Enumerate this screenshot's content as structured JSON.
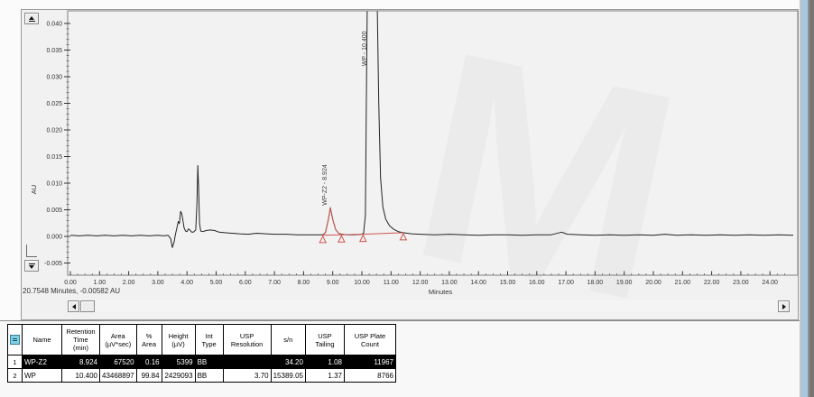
{
  "status_bar": {
    "text": "20.7548 Minutes, -0.00582 AU"
  },
  "chart_data": {
    "type": "line",
    "title": "",
    "xlabel": "Minutes",
    "ylabel": "AU",
    "xlim": [
      0,
      24.85
    ],
    "ylim": [
      -0.0073,
      0.0424
    ],
    "grid": false,
    "x_tick_labels": [
      "0.00",
      "1.00",
      "2.00",
      "3.00",
      "4.00",
      "5.00",
      "6.00",
      "7.00",
      "8.00",
      "9.00",
      "10.00",
      "11.00",
      "12.00",
      "13.00",
      "14.00",
      "15.00",
      "16.00",
      "17.00",
      "18.00",
      "19.00",
      "20.00",
      "21.00",
      "22.00",
      "23.00",
      "24.00"
    ],
    "y_tick_labels": [
      "-0.005",
      "0.000",
      "0.005",
      "0.010",
      "0.015",
      "0.020",
      "0.025",
      "0.030",
      "0.035",
      "0.040"
    ],
    "series": [
      {
        "name": "chromatogram-trace",
        "color": "#222222",
        "points": [
          [
            0.0,
            0.0002
          ],
          [
            0.3,
            0.0001
          ],
          [
            0.6,
            0.0002
          ],
          [
            0.9,
            0.0001
          ],
          [
            1.2,
            0.0002
          ],
          [
            1.5,
            0.0001
          ],
          [
            1.8,
            0.0002
          ],
          [
            2.1,
            0.0001
          ],
          [
            2.4,
            0.0002
          ],
          [
            2.7,
            0.0001
          ],
          [
            3.0,
            0.0002
          ],
          [
            3.2,
            0.0001
          ],
          [
            3.35,
            0.0002
          ],
          [
            3.44,
            -0.0004
          ],
          [
            3.5,
            -0.0021
          ],
          [
            3.56,
            -0.001
          ],
          [
            3.6,
            0.0003
          ],
          [
            3.65,
            0.0015
          ],
          [
            3.7,
            0.0028
          ],
          [
            3.74,
            0.0024
          ],
          [
            3.78,
            0.0047
          ],
          [
            3.82,
            0.0043
          ],
          [
            3.86,
            0.003
          ],
          [
            3.9,
            0.0016
          ],
          [
            3.95,
            0.001
          ],
          [
            4.0,
            0.0009
          ],
          [
            4.05,
            0.0014
          ],
          [
            4.1,
            0.0012
          ],
          [
            4.16,
            0.0008
          ],
          [
            4.22,
            0.0008
          ],
          [
            4.3,
            0.0012
          ],
          [
            4.34,
            0.006
          ],
          [
            4.37,
            0.0133
          ],
          [
            4.4,
            0.009
          ],
          [
            4.43,
            0.0025
          ],
          [
            4.47,
            0.001
          ],
          [
            4.55,
            0.0009
          ],
          [
            4.65,
            0.0011
          ],
          [
            4.8,
            0.0012
          ],
          [
            4.95,
            0.0011
          ],
          [
            5.1,
            0.0008
          ],
          [
            5.3,
            0.0007
          ],
          [
            5.55,
            0.0006
          ],
          [
            5.8,
            0.0005
          ],
          [
            6.1,
            0.0004
          ],
          [
            6.4,
            0.0006
          ],
          [
            6.7,
            0.0005
          ],
          [
            7.0,
            0.0004
          ],
          [
            7.4,
            0.0004
          ],
          [
            7.8,
            0.0003
          ],
          [
            8.2,
            0.0003
          ],
          [
            8.55,
            0.0003
          ],
          [
            8.66,
            0.0003
          ],
          [
            8.75,
            0.0007
          ],
          [
            8.85,
            0.0032
          ],
          [
            8.92,
            0.0054
          ],
          [
            9.0,
            0.0032
          ],
          [
            9.1,
            0.0013
          ],
          [
            9.2,
            0.0006
          ],
          [
            9.3,
            0.0004
          ],
          [
            9.5,
            0.0003
          ],
          [
            9.75,
            0.0003
          ],
          [
            10.0,
            0.0004
          ],
          [
            10.06,
            0.0006
          ],
          [
            10.12,
            0.004
          ],
          [
            10.16,
            0.03
          ],
          [
            10.19,
            0.046
          ],
          [
            10.52,
            0.046
          ],
          [
            10.58,
            0.025
          ],
          [
            10.64,
            0.011
          ],
          [
            10.72,
            0.0055
          ],
          [
            10.82,
            0.0032
          ],
          [
            10.95,
            0.002
          ],
          [
            11.1,
            0.0013
          ],
          [
            11.25,
            0.0009
          ],
          [
            11.42,
            0.0007
          ],
          [
            11.7,
            0.0005
          ],
          [
            12.0,
            0.0004
          ],
          [
            12.5,
            0.0003
          ],
          [
            13.0,
            0.0004
          ],
          [
            13.5,
            0.0003
          ],
          [
            14.0,
            0.0002
          ],
          [
            14.5,
            0.0003
          ],
          [
            15.0,
            0.0003
          ],
          [
            15.5,
            0.0002
          ],
          [
            16.0,
            0.0003
          ],
          [
            16.5,
            0.0003
          ],
          [
            16.85,
            0.0008
          ],
          [
            17.05,
            0.0004
          ],
          [
            17.5,
            0.0003
          ],
          [
            18.0,
            0.0002
          ],
          [
            18.5,
            0.0003
          ],
          [
            19.0,
            0.0002
          ],
          [
            19.5,
            0.0003
          ],
          [
            20.0,
            0.0002
          ],
          [
            20.4,
            0.0004
          ],
          [
            20.8,
            0.0002
          ],
          [
            21.3,
            0.0003
          ],
          [
            21.8,
            0.0002
          ],
          [
            22.3,
            0.0003
          ],
          [
            22.8,
            0.0002
          ],
          [
            23.3,
            0.0003
          ],
          [
            23.8,
            0.0002
          ],
          [
            24.3,
            0.0003
          ],
          [
            24.8,
            0.0002
          ]
        ]
      },
      {
        "name": "integration-baseline",
        "color": "#cc5550",
        "points": [
          [
            8.66,
            0.0002
          ],
          [
            9.3,
            0.0003
          ],
          [
            10.04,
            0.0004
          ],
          [
            11.42,
            0.0007
          ]
        ]
      },
      {
        "name": "wp-z2-peak-highlight",
        "color": "#cc5550",
        "points": [
          [
            8.66,
            0.0002
          ],
          [
            8.75,
            0.0007
          ],
          [
            8.85,
            0.0032
          ],
          [
            8.92,
            0.0054
          ],
          [
            9.0,
            0.0032
          ],
          [
            9.1,
            0.0013
          ],
          [
            9.2,
            0.0006
          ],
          [
            9.3,
            0.0003
          ]
        ]
      }
    ],
    "integration_marks": {
      "color": "#cc5550",
      "points": [
        [
          8.66,
          0.0002
        ],
        [
          9.3,
          0.0003
        ],
        [
          10.04,
          0.0004
        ],
        [
          11.42,
          0.0007
        ]
      ]
    },
    "peak_labels": [
      {
        "text": "WP-Z2 - 8.924",
        "t": 8.8,
        "au": 0.0058
      },
      {
        "text": "WP - 10.400",
        "t": 10.16,
        "au": 0.032
      }
    ],
    "peaks": [
      {
        "name": "WP-Z2",
        "retention_time_min": 8.924,
        "apex_au_displayed": 0.0054
      },
      {
        "name": "WP",
        "retention_time_min": 10.4,
        "clipped_above_au": 0.04
      }
    ]
  },
  "table": {
    "headers": [
      "Name",
      "Retention\nTime\n(min)",
      "Area\n(µV*sec)",
      "% Area",
      "Height\n(µV)",
      "Int Type",
      "USP Resolution",
      "s/n",
      "USP Tailing",
      "USP Plate Count"
    ],
    "rows": [
      {
        "num": "1",
        "selected": true,
        "cells": [
          "WP-Z2",
          "8.924",
          "67520",
          "0.16",
          "5399",
          "BB",
          "",
          "34.20",
          "1.08",
          "11967"
        ]
      },
      {
        "num": "2",
        "selected": false,
        "cells": [
          "WP",
          "10.400",
          "43468897",
          "99.84",
          "2429093",
          "BB",
          "3.70",
          "15389.05",
          "1.37",
          "8766"
        ]
      }
    ]
  },
  "watermark": {
    "text": "M"
  }
}
